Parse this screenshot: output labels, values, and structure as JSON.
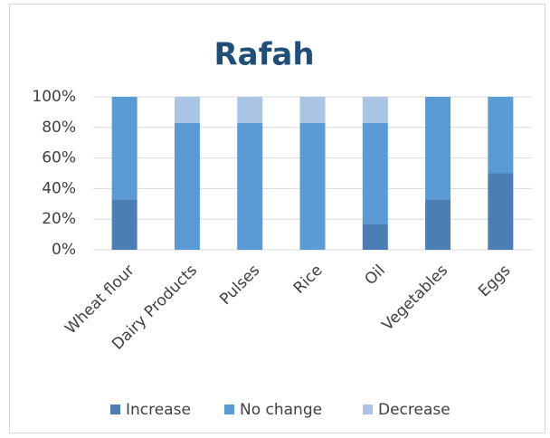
{
  "chart_data": {
    "type": "stacked_bar",
    "title": "Rafah",
    "categories": [
      "Wheat flour",
      "Dairy Products",
      "Pulses",
      "Rice",
      "Oil",
      "Vegetables",
      "Eggs"
    ],
    "series": [
      {
        "name": "Increase",
        "color": "#4a7eb5",
        "values": [
          33,
          0,
          0,
          0,
          17,
          33,
          50
        ]
      },
      {
        "name": "No change",
        "color": "#5b9bd5",
        "values": [
          67,
          83,
          83,
          83,
          66,
          67,
          50
        ]
      },
      {
        "name": "Decrease",
        "color": "#aac4e6",
        "values": [
          0,
          17,
          17,
          17,
          17,
          0,
          0
        ]
      }
    ],
    "ylim": [
      0,
      100
    ],
    "yticks": [
      {
        "value": 0,
        "label": "0%"
      },
      {
        "value": 20,
        "label": "20%"
      },
      {
        "value": 40,
        "label": "40%"
      },
      {
        "value": 60,
        "label": "60%"
      },
      {
        "value": 80,
        "label": "80%"
      },
      {
        "value": 100,
        "label": "100%"
      }
    ],
    "legend": "bottom"
  }
}
